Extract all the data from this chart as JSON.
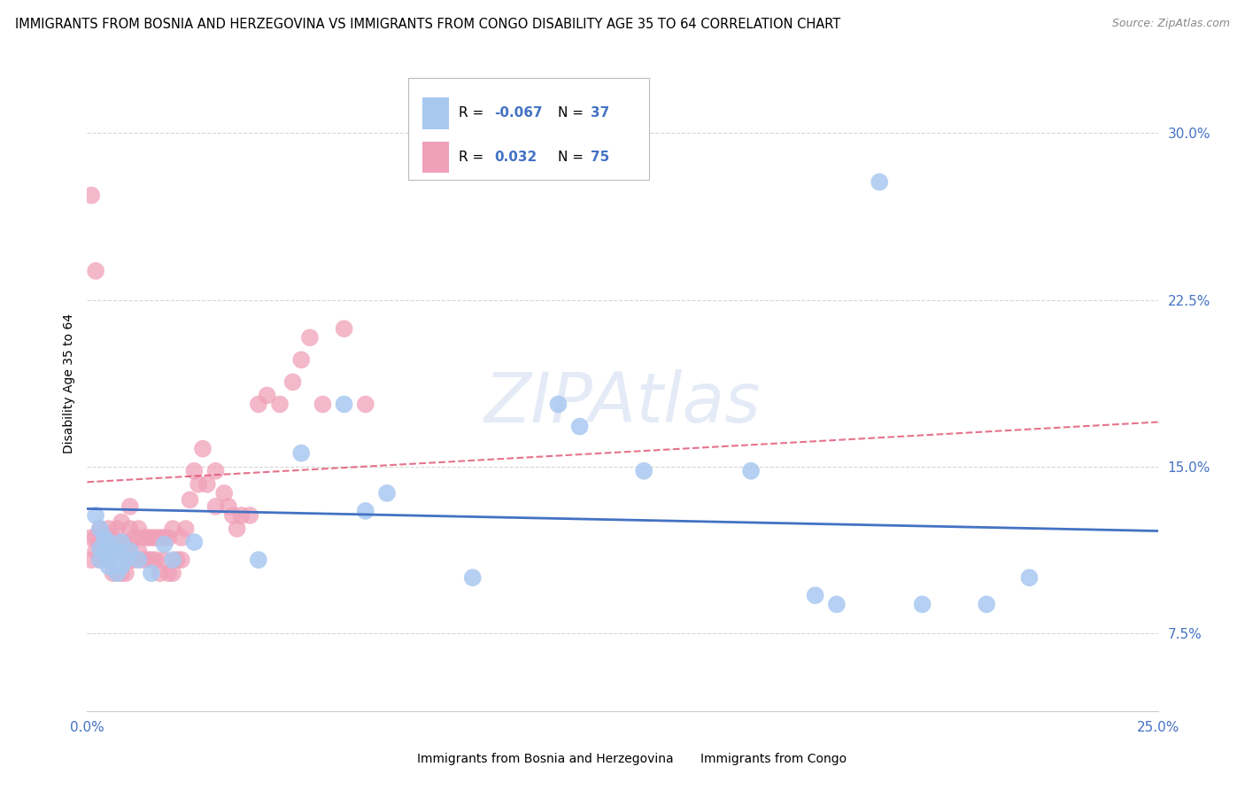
{
  "title": "IMMIGRANTS FROM BOSNIA AND HERZEGOVINA VS IMMIGRANTS FROM CONGO DISABILITY AGE 35 TO 64 CORRELATION CHART",
  "source": "Source: ZipAtlas.com",
  "ylabel": "Disability Age 35 to 64",
  "xlim": [
    0.0,
    0.25
  ],
  "ylim": [
    0.04,
    0.335
  ],
  "yticks": [
    0.075,
    0.15,
    0.225,
    0.3
  ],
  "ytick_labels": [
    "7.5%",
    "15.0%",
    "22.5%",
    "30.0%"
  ],
  "xticks": [
    0.0,
    0.25
  ],
  "xtick_labels": [
    "0.0%",
    "25.0%"
  ],
  "grid_color": "#cccccc",
  "background_color": "#ffffff",
  "bosnia_line_color": "#4472c4",
  "congo_line_color": "#e05070",
  "bosnia_dot_color": "#a8c8f0",
  "congo_dot_color": "#f0a0b8",
  "tick_color": "#4472c4",
  "bosnia_trend": [
    0.131,
    0.121
  ],
  "congo_trend": [
    0.143,
    0.17
  ],
  "bosnia_x": [
    0.002,
    0.003,
    0.004,
    0.003,
    0.005,
    0.004,
    0.003,
    0.005,
    0.006,
    0.005,
    0.007,
    0.008,
    0.009,
    0.01,
    0.008,
    0.007,
    0.012,
    0.015,
    0.018,
    0.02,
    0.025,
    0.04,
    0.05,
    0.06,
    0.065,
    0.07,
    0.09,
    0.11,
    0.115,
    0.13,
    0.155,
    0.17,
    0.175,
    0.185,
    0.195,
    0.21,
    0.22
  ],
  "bosnia_y": [
    0.128,
    0.122,
    0.118,
    0.113,
    0.116,
    0.112,
    0.108,
    0.105,
    0.112,
    0.108,
    0.112,
    0.116,
    0.108,
    0.112,
    0.105,
    0.102,
    0.108,
    0.102,
    0.115,
    0.108,
    0.116,
    0.108,
    0.156,
    0.178,
    0.13,
    0.138,
    0.1,
    0.178,
    0.168,
    0.148,
    0.148,
    0.092,
    0.088,
    0.278,
    0.088,
    0.088,
    0.1
  ],
  "congo_x": [
    0.001,
    0.001,
    0.002,
    0.002,
    0.003,
    0.003,
    0.003,
    0.004,
    0.004,
    0.005,
    0.005,
    0.005,
    0.006,
    0.006,
    0.006,
    0.007,
    0.007,
    0.007,
    0.008,
    0.008,
    0.008,
    0.009,
    0.009,
    0.01,
    0.01,
    0.01,
    0.01,
    0.011,
    0.011,
    0.012,
    0.012,
    0.013,
    0.013,
    0.014,
    0.014,
    0.015,
    0.015,
    0.016,
    0.016,
    0.017,
    0.017,
    0.018,
    0.018,
    0.019,
    0.019,
    0.02,
    0.02,
    0.021,
    0.022,
    0.022,
    0.023,
    0.024,
    0.025,
    0.026,
    0.027,
    0.028,
    0.03,
    0.03,
    0.032,
    0.033,
    0.034,
    0.035,
    0.036,
    0.038,
    0.04,
    0.042,
    0.045,
    0.048,
    0.05,
    0.052,
    0.055,
    0.06,
    0.065,
    0.001,
    0.002
  ],
  "congo_y": [
    0.108,
    0.118,
    0.112,
    0.118,
    0.108,
    0.115,
    0.122,
    0.112,
    0.118,
    0.108,
    0.115,
    0.122,
    0.102,
    0.112,
    0.118,
    0.102,
    0.112,
    0.122,
    0.102,
    0.115,
    0.125,
    0.102,
    0.115,
    0.108,
    0.115,
    0.122,
    0.132,
    0.108,
    0.118,
    0.112,
    0.122,
    0.108,
    0.118,
    0.108,
    0.118,
    0.108,
    0.118,
    0.108,
    0.118,
    0.102,
    0.118,
    0.108,
    0.118,
    0.102,
    0.118,
    0.102,
    0.122,
    0.108,
    0.108,
    0.118,
    0.122,
    0.135,
    0.148,
    0.142,
    0.158,
    0.142,
    0.132,
    0.148,
    0.138,
    0.132,
    0.128,
    0.122,
    0.128,
    0.128,
    0.178,
    0.182,
    0.178,
    0.188,
    0.198,
    0.208,
    0.178,
    0.212,
    0.178,
    0.272,
    0.238
  ]
}
